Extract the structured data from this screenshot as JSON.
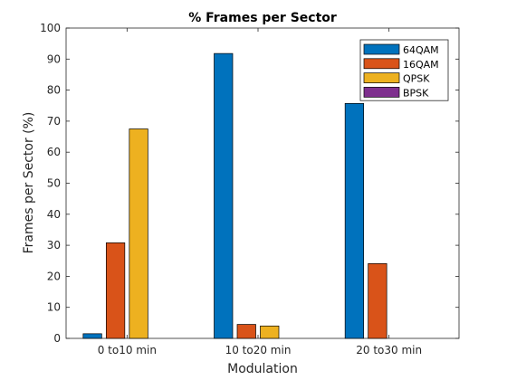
{
  "chart_data": {
    "type": "bar",
    "title": "% Frames per Sector",
    "xlabel": "Modulation",
    "ylabel": "Frames per Sector (%)",
    "categories": [
      "0 to10 min",
      "10 to20 min",
      "20 to30 min"
    ],
    "ylim": [
      0,
      100
    ],
    "yticks": [
      0,
      10,
      20,
      30,
      40,
      50,
      60,
      70,
      80,
      90,
      100
    ],
    "grid": false,
    "legend_position": "top-right",
    "series": [
      {
        "name": "64QAM",
        "color": "#0072BD",
        "values": [
          1.5,
          91.8,
          75.7
        ]
      },
      {
        "name": "16QAM",
        "color": "#D95319",
        "values": [
          30.8,
          4.5,
          24.1
        ]
      },
      {
        "name": "QPSK",
        "color": "#EDB120",
        "values": [
          67.5,
          4.0,
          0
        ]
      },
      {
        "name": "BPSK",
        "color": "#7E2F8E",
        "values": [
          0,
          0,
          0
        ]
      }
    ]
  }
}
